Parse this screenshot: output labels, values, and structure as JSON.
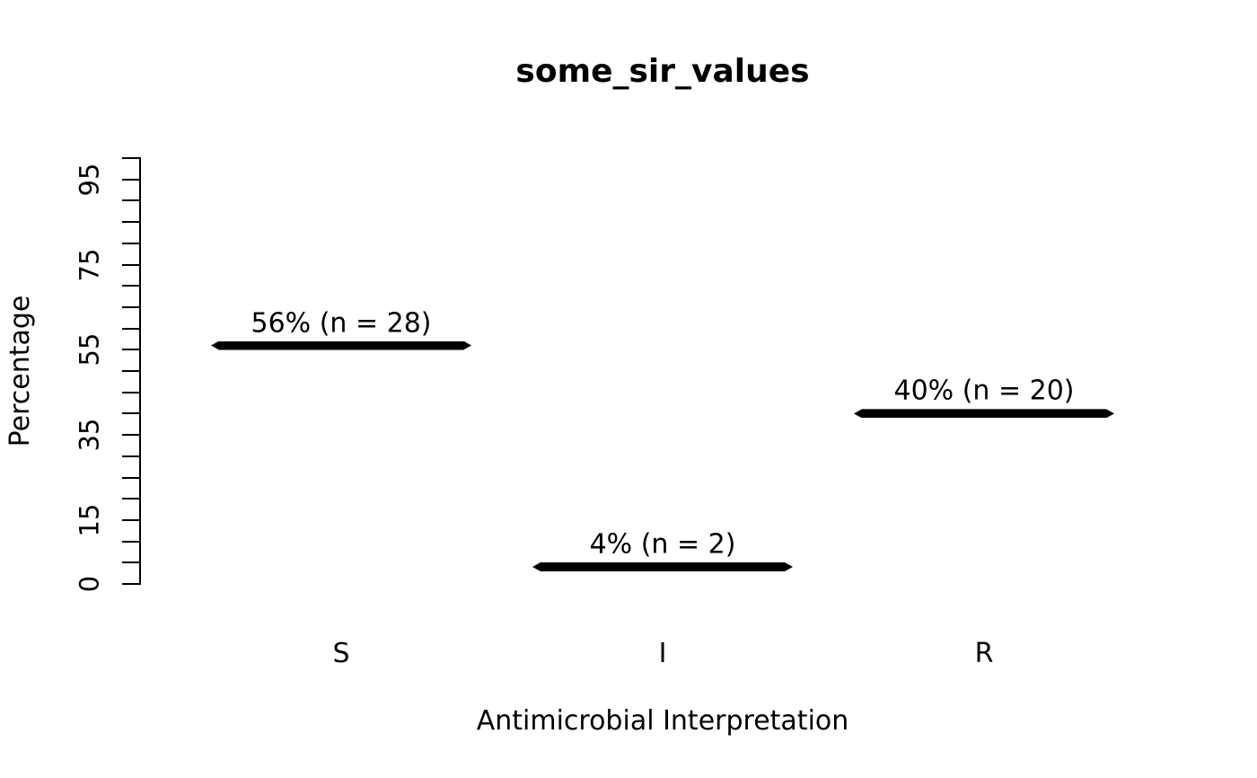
{
  "figure": {
    "background": "#ffffff",
    "foreground": "#000000"
  },
  "chart_data": {
    "type": "bar",
    "title": "some_sir_values",
    "xlabel": "Antimicrobial Interpretation",
    "ylabel": "Percentage",
    "categories": [
      "S",
      "I",
      "R"
    ],
    "values": [
      56,
      4,
      40
    ],
    "counts": [
      28,
      2,
      20
    ],
    "bar_labels": [
      "56% (n = 28)",
      "4% (n = 2)",
      "40% (n = 20)"
    ],
    "ylim": [
      0,
      100
    ],
    "y_tick_step": 5,
    "y_labeled_ticks": [
      0,
      15,
      35,
      55,
      75,
      95
    ],
    "grid": false,
    "legend": false,
    "bar_color": "#000000",
    "bar_style": "horizontal-segment"
  }
}
